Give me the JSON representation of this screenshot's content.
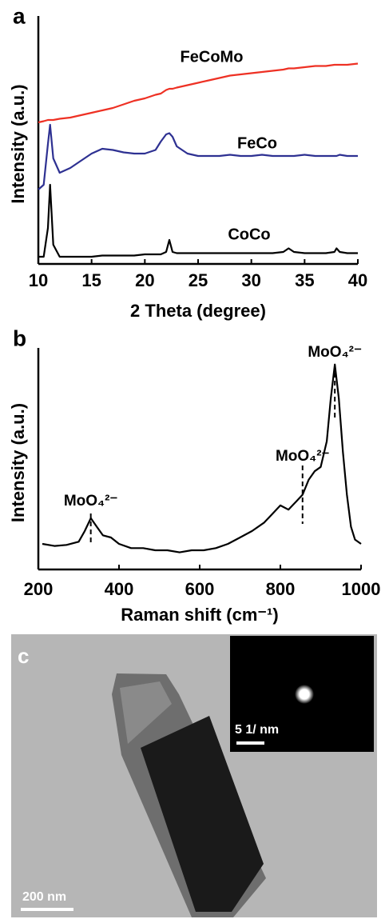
{
  "chart_data": [
    {
      "type": "line",
      "panel_label": "a",
      "xlabel": "2 Theta (degree)",
      "ylabel": "Intensity (a.u.)",
      "xlim": [
        10,
        40
      ],
      "ylim": [
        0,
        100
      ],
      "xticks": [
        10,
        15,
        20,
        25,
        30,
        35,
        40
      ],
      "x": [
        10,
        10.5,
        10.9,
        11.1,
        11.4,
        12,
        13,
        14,
        15,
        16,
        17,
        18,
        19,
        20,
        21,
        21.5,
        22,
        22.3,
        22.6,
        23,
        24,
        25,
        26,
        27,
        28,
        29,
        30,
        31,
        32,
        33,
        33.5,
        34,
        35,
        36,
        37,
        37.8,
        38,
        38.3,
        39,
        40
      ],
      "series": [
        {
          "name": "FeCoMo",
          "color": "#ee3124",
          "values": [
            59,
            59.5,
            60,
            60,
            60,
            60.5,
            61,
            62,
            63,
            64,
            65,
            66.5,
            68,
            69,
            70.5,
            71,
            72.5,
            73,
            73,
            73.5,
            74.5,
            75.5,
            76.5,
            77.5,
            78.5,
            79,
            79.5,
            80,
            80.5,
            81,
            81.5,
            81.5,
            82,
            82.5,
            82.5,
            83,
            83,
            83,
            83,
            83.5
          ]
        },
        {
          "name": "FeCo",
          "color": "#2e3192",
          "values": [
            31,
            33,
            50,
            58,
            44,
            38,
            40,
            43,
            46,
            48,
            47.5,
            46.5,
            46,
            46,
            47.5,
            51,
            54,
            54.5,
            53,
            49,
            46,
            45,
            45,
            45,
            45.5,
            45,
            45,
            45.5,
            45,
            45,
            45,
            45,
            45.5,
            45,
            45,
            45,
            45,
            45.5,
            45,
            45
          ]
        },
        {
          "name": "CoCo",
          "color": "#000000",
          "values": [
            3,
            3,
            15,
            33,
            8,
            3,
            3,
            3,
            3,
            3.5,
            3.5,
            3.5,
            3.5,
            4,
            4,
            4,
            5,
            10,
            5,
            4.5,
            4.5,
            4.5,
            4.5,
            4.5,
            4.5,
            4.5,
            4.5,
            4.5,
            4.5,
            5,
            6.5,
            5,
            4.5,
            4.5,
            4.5,
            5,
            6.5,
            5,
            4.5,
            4.5
          ]
        }
      ]
    },
    {
      "type": "line",
      "panel_label": "b",
      "xlabel": "Raman shift (cm⁻¹)",
      "ylabel": "Intensity (a.u.)",
      "xlim": [
        200,
        1000
      ],
      "ylim": [
        0,
        100
      ],
      "xticks": [
        200,
        400,
        600,
        800,
        1000
      ],
      "x": [
        210,
        240,
        270,
        300,
        315,
        330,
        345,
        360,
        380,
        400,
        430,
        460,
        490,
        520,
        550,
        580,
        610,
        640,
        670,
        700,
        730,
        760,
        780,
        800,
        820,
        840,
        855,
        870,
        885,
        900,
        915,
        925,
        935,
        945,
        955,
        965,
        975,
        985,
        1000
      ],
      "series": [
        {
          "color": "#000000",
          "values": [
            12,
            11,
            11.5,
            13,
            18,
            24,
            20,
            16,
            15,
            12,
            10,
            10,
            9,
            9,
            8,
            9,
            9,
            10,
            12,
            15,
            18,
            22,
            26,
            30,
            28,
            32,
            35,
            42,
            46,
            48,
            60,
            80,
            96,
            80,
            55,
            35,
            20,
            14,
            12
          ]
        }
      ],
      "annotations": [
        {
          "text": "MoO₄²⁻",
          "x": 330
        },
        {
          "text": "MoO₄²⁻",
          "x": 855
        },
        {
          "text": "MoO₄²⁻",
          "x": 935
        }
      ]
    }
  ],
  "image_panel": {
    "panel_label": "c",
    "scale_bar": "200 nm",
    "inset_scale_bar": "5 1/ nm"
  }
}
